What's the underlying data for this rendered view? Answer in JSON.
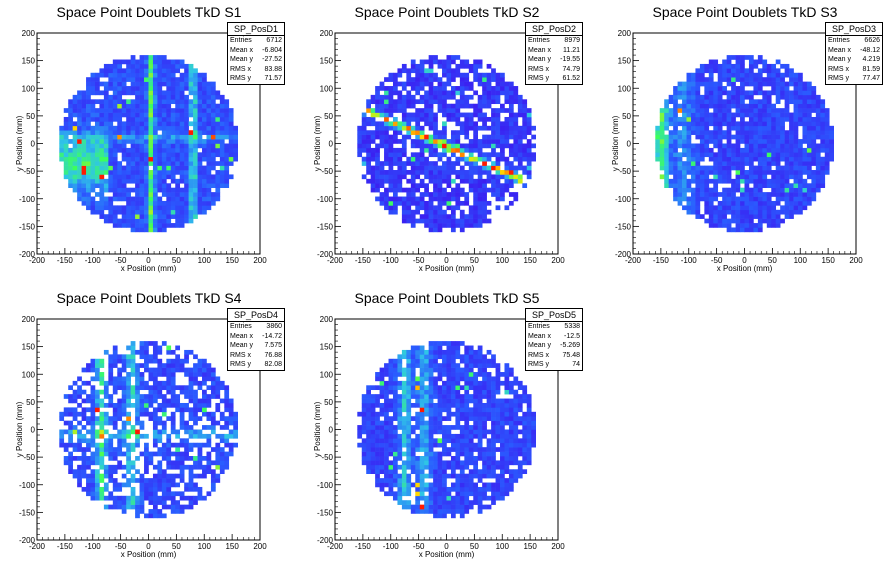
{
  "chart_data": [
    {
      "type": "heatmap",
      "title": "Space Point Doublets TkD S1",
      "xlabel": "x Position (mm)",
      "ylabel": "y Position (mm)",
      "xlim": [
        -200,
        200
      ],
      "ylim": [
        -200,
        200
      ],
      "ticks": [
        -200,
        -150,
        -100,
        -50,
        0,
        50,
        100,
        150,
        200
      ],
      "stats": {
        "name": "SP_PosD1",
        "rows": [
          {
            "label": "Entries",
            "value": "6712"
          },
          {
            "label": "Mean x",
            "value": "-6.804"
          },
          {
            "label": "Mean y",
            "value": "-27.52"
          },
          {
            "label": "RMS x",
            "value": "83.88"
          },
          {
            "label": "RMS y",
            "value": "71.57"
          }
        ]
      }
    },
    {
      "type": "heatmap",
      "title": "Space Point Doublets TkD S2",
      "xlabel": "x Position (mm)",
      "ylabel": "y Position (mm)",
      "xlim": [
        -200,
        200
      ],
      "ylim": [
        -200,
        200
      ],
      "ticks": [
        -200,
        -150,
        -100,
        -50,
        0,
        50,
        100,
        150,
        200
      ],
      "stats": {
        "name": "SP_PosD2",
        "rows": [
          {
            "label": "Entries",
            "value": "8979"
          },
          {
            "label": "Mean x",
            "value": "11.21"
          },
          {
            "label": "Mean y",
            "value": "-19.55"
          },
          {
            "label": "RMS x",
            "value": "74.79"
          },
          {
            "label": "RMS y",
            "value": "61.52"
          }
        ]
      }
    },
    {
      "type": "heatmap",
      "title": "Space Point Doublets TkD S3",
      "xlabel": "x Position (mm)",
      "ylabel": "y Position (mm)",
      "xlim": [
        -200,
        200
      ],
      "ylim": [
        -200,
        200
      ],
      "ticks": [
        -200,
        -150,
        -100,
        -50,
        0,
        50,
        100,
        150,
        200
      ],
      "stats": {
        "name": "SP_PosD3",
        "rows": [
          {
            "label": "Entries",
            "value": "6626"
          },
          {
            "label": "Mean x",
            "value": "-48.12"
          },
          {
            "label": "Mean y",
            "value": "4.219"
          },
          {
            "label": "RMS x",
            "value": "81.59"
          },
          {
            "label": "RMS y",
            "value": "77.47"
          }
        ]
      }
    },
    {
      "type": "heatmap",
      "title": "Space Point Doublets TkD S4",
      "xlabel": "x Position (mm)",
      "ylabel": "y Position (mm)",
      "xlim": [
        -200,
        200
      ],
      "ylim": [
        -200,
        200
      ],
      "ticks": [
        -200,
        -150,
        -100,
        -50,
        0,
        50,
        100,
        150,
        200
      ],
      "stats": {
        "name": "SP_PosD4",
        "rows": [
          {
            "label": "Entries",
            "value": "3860"
          },
          {
            "label": "Mean x",
            "value": "-14.72"
          },
          {
            "label": "Mean y",
            "value": "7.575"
          },
          {
            "label": "RMS x",
            "value": "76.88"
          },
          {
            "label": "RMS y",
            "value": "82.08"
          }
        ]
      }
    },
    {
      "type": "heatmap",
      "title": "Space Point Doublets TkD S5",
      "xlabel": "x Position (mm)",
      "ylabel": "y Position (mm)",
      "xlim": [
        -200,
        200
      ],
      "ylim": [
        -200,
        200
      ],
      "ticks": [
        -200,
        -150,
        -100,
        -50,
        0,
        50,
        100,
        150,
        200
      ],
      "stats": {
        "name": "SP_PosD5",
        "rows": [
          {
            "label": "Entries",
            "value": "5338"
          },
          {
            "label": "Mean x",
            "value": "-12.5"
          },
          {
            "label": "Mean y",
            "value": "-5.269"
          },
          {
            "label": "RMS x",
            "value": "75.48"
          },
          {
            "label": "RMS y",
            "value": "74"
          }
        ]
      }
    }
  ],
  "colors": {
    "low": "#3c1cf0",
    "mid": "#2fc4e8",
    "high": "#ff1a00",
    "empty": "#ffffff"
  }
}
